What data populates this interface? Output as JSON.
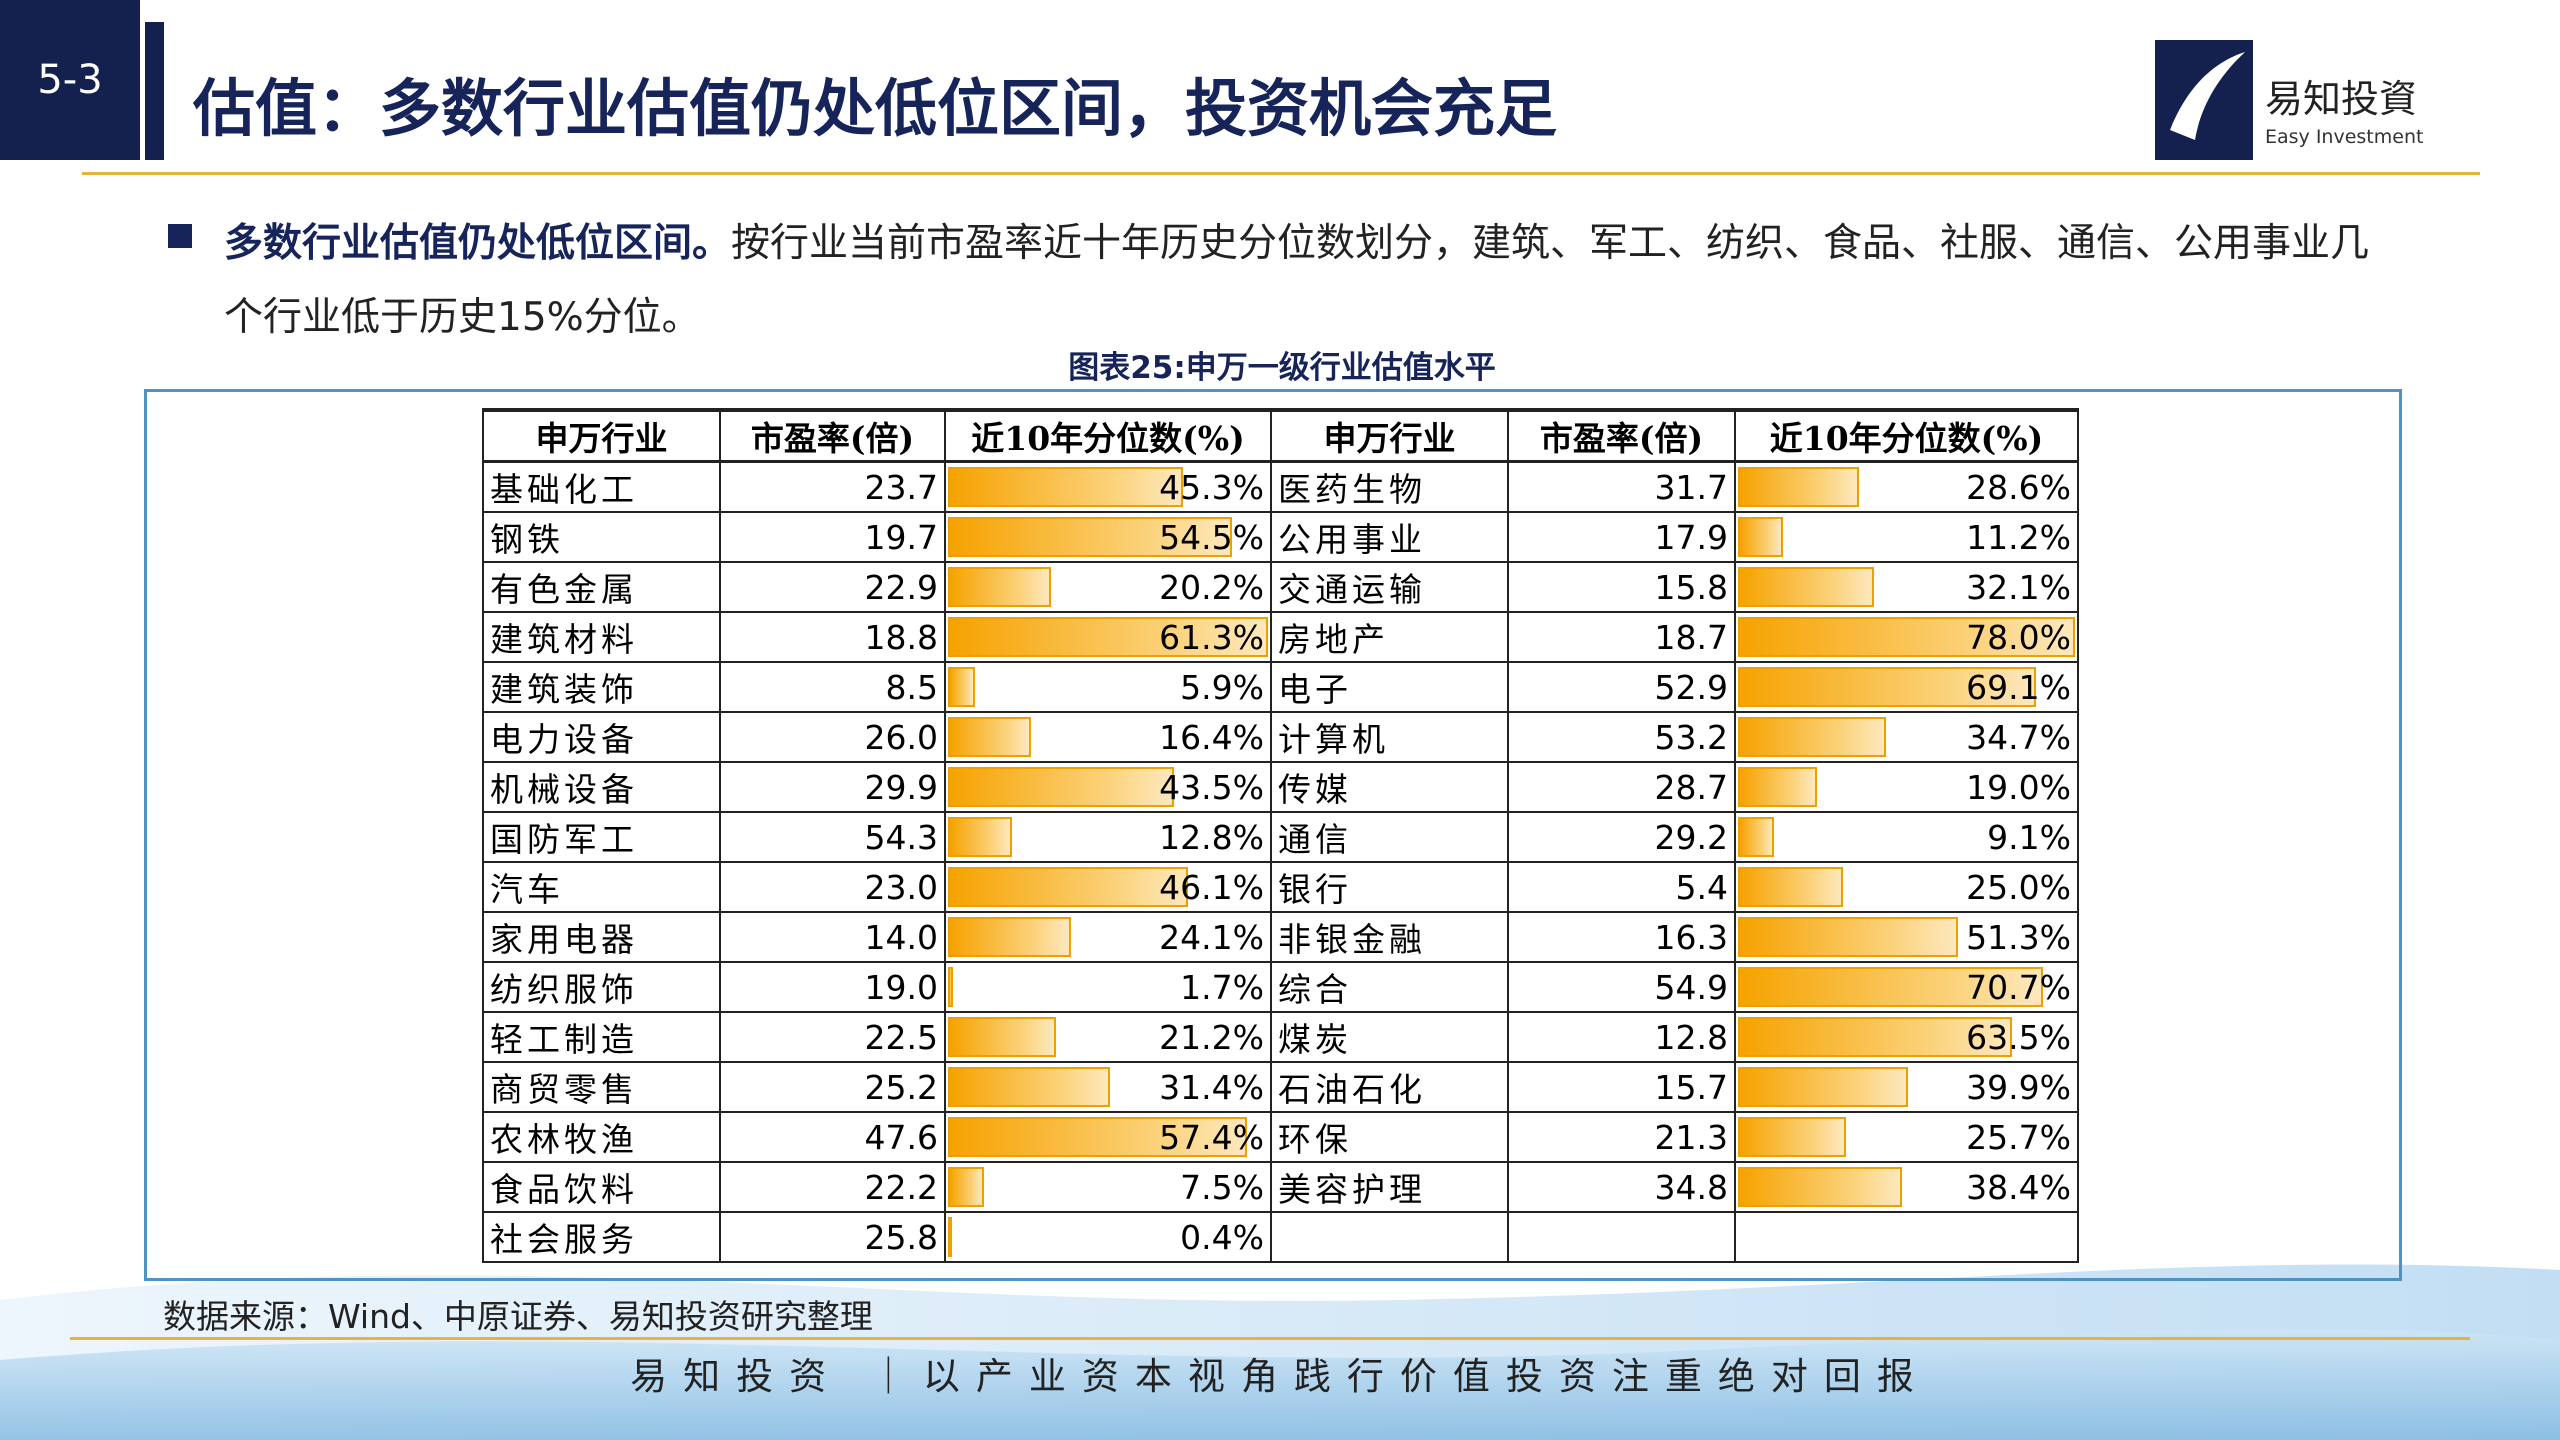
{
  "header": {
    "section": "5-3",
    "title": "估值：多数行业估值仍处低位区间，投资机会充足"
  },
  "logo": {
    "cn": "易知投資",
    "en": "Easy Investment"
  },
  "bullet": {
    "bold": "多数行业估值仍处低位区间。",
    "text": "按行业当前市盈率近十年历史分位数划分，建筑、军工、纺织、食品、社服、通信、公用事业几个行业低于历史15%分位。"
  },
  "caption": "图表25:申万一级行业估值水平",
  "table": {
    "headers": [
      "申万行业",
      "市盈率(倍)",
      "近10年分位数(%)",
      "申万行业",
      "市盈率(倍)",
      "近10年分位数(%)"
    ],
    "left": [
      {
        "name": "基础化工",
        "pe": "23.7",
        "pct": 45.3,
        "pct_label": "45.3%"
      },
      {
        "name": "钢铁",
        "pe": "19.7",
        "pct": 54.5,
        "pct_label": "54.5%"
      },
      {
        "name": "有色金属",
        "pe": "22.9",
        "pct": 20.2,
        "pct_label": "20.2%"
      },
      {
        "name": "建筑材料",
        "pe": "18.8",
        "pct": 61.3,
        "pct_label": "61.3%"
      },
      {
        "name": "建筑装饰",
        "pe": "8.5",
        "pct": 5.9,
        "pct_label": "5.9%"
      },
      {
        "name": "电力设备",
        "pe": "26.0",
        "pct": 16.4,
        "pct_label": "16.4%"
      },
      {
        "name": "机械设备",
        "pe": "29.9",
        "pct": 43.5,
        "pct_label": "43.5%"
      },
      {
        "name": "国防军工",
        "pe": "54.3",
        "pct": 12.8,
        "pct_label": "12.8%"
      },
      {
        "name": "汽车",
        "pe": "23.0",
        "pct": 46.1,
        "pct_label": "46.1%"
      },
      {
        "name": "家用电器",
        "pe": "14.0",
        "pct": 24.1,
        "pct_label": "24.1%"
      },
      {
        "name": "纺织服饰",
        "pe": "19.0",
        "pct": 1.7,
        "pct_label": "1.7%"
      },
      {
        "name": "轻工制造",
        "pe": "22.5",
        "pct": 21.2,
        "pct_label": "21.2%"
      },
      {
        "name": "商贸零售",
        "pe": "25.2",
        "pct": 31.4,
        "pct_label": "31.4%"
      },
      {
        "name": "农林牧渔",
        "pe": "47.6",
        "pct": 57.4,
        "pct_label": "57.4%"
      },
      {
        "name": "食品饮料",
        "pe": "22.2",
        "pct": 7.5,
        "pct_label": "7.5%"
      },
      {
        "name": "社会服务",
        "pe": "25.8",
        "pct": 0.4,
        "pct_label": "0.4%"
      }
    ],
    "right": [
      {
        "name": "医药生物",
        "pe": "31.7",
        "pct": 28.6,
        "pct_label": "28.6%"
      },
      {
        "name": "公用事业",
        "pe": "17.9",
        "pct": 11.2,
        "pct_label": "11.2%"
      },
      {
        "name": "交通运输",
        "pe": "15.8",
        "pct": 32.1,
        "pct_label": "32.1%"
      },
      {
        "name": "房地产",
        "pe": "18.7",
        "pct": 78.0,
        "pct_label": "78.0%"
      },
      {
        "name": "电子",
        "pe": "52.9",
        "pct": 69.1,
        "pct_label": "69.1%"
      },
      {
        "name": "计算机",
        "pe": "53.2",
        "pct": 34.7,
        "pct_label": "34.7%"
      },
      {
        "name": "传媒",
        "pe": "28.7",
        "pct": 19.0,
        "pct_label": "19.0%"
      },
      {
        "name": "通信",
        "pe": "29.2",
        "pct": 9.1,
        "pct_label": "9.1%"
      },
      {
        "name": "银行",
        "pe": "5.4",
        "pct": 25.0,
        "pct_label": "25.0%"
      },
      {
        "name": "非银金融",
        "pe": "16.3",
        "pct": 51.3,
        "pct_label": "51.3%"
      },
      {
        "name": "综合",
        "pe": "54.9",
        "pct": 70.7,
        "pct_label": "70.7%"
      },
      {
        "name": "煤炭",
        "pe": "12.8",
        "pct": 63.5,
        "pct_label": "63.5%"
      },
      {
        "name": "石油石化",
        "pe": "15.7",
        "pct": 39.9,
        "pct_label": "39.9%"
      },
      {
        "name": "环保",
        "pe": "21.3",
        "pct": 25.7,
        "pct_label": "25.7%"
      },
      {
        "name": "美容护理",
        "pe": "34.8",
        "pct": 38.4,
        "pct_label": "38.4%"
      }
    ]
  },
  "source": "数据来源：Wind、中原证券、易知投资研究整理",
  "footer": "易知投资 ｜以产业资本视角践行价值投资注重绝对回报"
}
